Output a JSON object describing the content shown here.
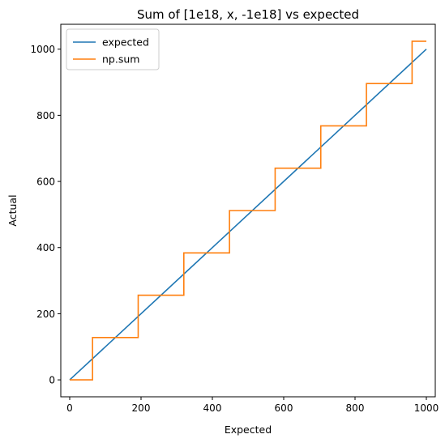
{
  "chart_data": {
    "type": "line",
    "title": "Sum of [1e18, x, -1e18] vs expected",
    "xlabel": "Expected",
    "ylabel": "Actual",
    "xlim": [
      -25,
      1025
    ],
    "ylim": [
      -51.2,
      1075.2
    ],
    "x_ticks": [
      0,
      200,
      400,
      600,
      800,
      1000
    ],
    "y_ticks": [
      0,
      200,
      400,
      600,
      800,
      1000
    ],
    "grid": false,
    "legend": {
      "position": "top-left",
      "entries": [
        "expected",
        "np.sum"
      ]
    },
    "series": [
      {
        "name": "expected",
        "color": "#1f77b4",
        "style": "line",
        "x": [
          0,
          1000
        ],
        "y": [
          0,
          1000
        ]
      },
      {
        "name": "np.sum",
        "color": "#ff7f0e",
        "style": "step",
        "x": [
          0,
          64,
          64,
          192,
          192,
          320,
          320,
          448,
          448,
          576,
          576,
          704,
          704,
          832,
          832,
          960,
          960,
          1000
        ],
        "y": [
          0,
          0,
          128,
          128,
          256,
          256,
          384,
          384,
          512,
          512,
          640,
          640,
          768,
          768,
          896,
          896,
          1024,
          1024
        ]
      }
    ]
  }
}
